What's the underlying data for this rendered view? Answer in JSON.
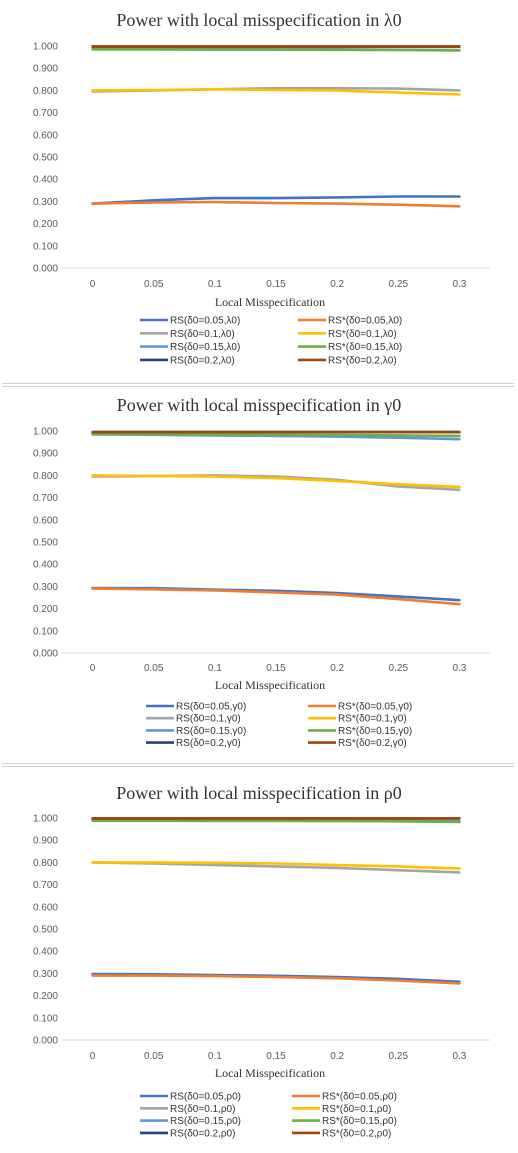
{
  "chart_data": [
    {
      "type": "line",
      "title": "Power with local misspecification in λ0",
      "xlabel": "Local Misspecification",
      "ylabel": "",
      "ylim": [
        0,
        1
      ],
      "x": [
        0,
        0.05,
        0.1,
        0.15,
        0.2,
        0.25,
        0.3
      ],
      "x_tick_labels": [
        "0",
        "0.05",
        "0.1",
        "0.15",
        "0.2",
        "0.25",
        "0.3"
      ],
      "y_tick_labels": [
        "0.000",
        "0.100",
        "0.200",
        "0.300",
        "0.400",
        "0.500",
        "0.600",
        "0.700",
        "0.800",
        "0.900",
        "1.000"
      ],
      "grid": false,
      "legend_position": "bottom",
      "series": [
        {
          "name": "RS(δ0=0.05,λ0)",
          "color": "#4472C4",
          "values": [
            0.29,
            0.305,
            0.315,
            0.315,
            0.318,
            0.322,
            0.322
          ]
        },
        {
          "name": "RS*(δ0=0.05,λ0)",
          "color": "#ED7D31",
          "values": [
            0.29,
            0.295,
            0.297,
            0.293,
            0.29,
            0.285,
            0.278
          ]
        },
        {
          "name": "RS(δ0=0.1,λ0)",
          "color": "#A5A5A5",
          "values": [
            0.795,
            0.8,
            0.805,
            0.81,
            0.81,
            0.808,
            0.8
          ]
        },
        {
          "name": "RS*(δ0=0.1,λ0)",
          "color": "#FFC000",
          "values": [
            0.8,
            0.802,
            0.805,
            0.802,
            0.8,
            0.79,
            0.782
          ]
        },
        {
          "name": "RS(δ0=0.15,λ0)",
          "color": "#5B9BD5",
          "values": [
            0.985,
            0.985,
            0.985,
            0.985,
            0.985,
            0.983,
            0.982
          ]
        },
        {
          "name": "RS*(δ0=0.15,λ0)",
          "color": "#70AD47",
          "values": [
            0.985,
            0.985,
            0.984,
            0.984,
            0.983,
            0.982,
            0.98
          ]
        },
        {
          "name": "RS(δ0=0.2,λ0)",
          "color": "#264478",
          "values": [
            0.998,
            0.998,
            0.998,
            0.998,
            0.998,
            0.998,
            0.998
          ]
        },
        {
          "name": "RS*(δ0=0.2,λ0)",
          "color": "#9E480E",
          "values": [
            0.997,
            0.997,
            0.997,
            0.997,
            0.997,
            0.997,
            0.997
          ]
        }
      ]
    },
    {
      "type": "line",
      "title": "Power with local misspecification in γ0",
      "xlabel": "Local Misspecification",
      "ylabel": "",
      "ylim": [
        0,
        1
      ],
      "x": [
        0,
        0.05,
        0.1,
        0.15,
        0.2,
        0.25,
        0.3
      ],
      "x_tick_labels": [
        "0",
        "0.05",
        "0.1",
        "0.15",
        "0.2",
        "0.25",
        "0.3"
      ],
      "y_tick_labels": [
        "0.000",
        "0.100",
        "0.200",
        "0.300",
        "0.400",
        "0.500",
        "0.600",
        "0.700",
        "0.800",
        "0.900",
        "1.000"
      ],
      "grid": false,
      "legend_position": "bottom",
      "series": [
        {
          "name": "RS(δ0=0.05,γ0)",
          "color": "#4472C4",
          "values": [
            0.293,
            0.292,
            0.285,
            0.28,
            0.27,
            0.255,
            0.238
          ]
        },
        {
          "name": "RS*(δ0=0.05,γ0)",
          "color": "#ED7D31",
          "values": [
            0.29,
            0.287,
            0.282,
            0.273,
            0.263,
            0.243,
            0.22
          ]
        },
        {
          "name": "RS(δ0=0.1,γ0)",
          "color": "#A5A5A5",
          "values": [
            0.795,
            0.797,
            0.8,
            0.795,
            0.78,
            0.75,
            0.735
          ]
        },
        {
          "name": "RS*(δ0=0.1,γ0)",
          "color": "#FFC000",
          "values": [
            0.8,
            0.797,
            0.795,
            0.788,
            0.775,
            0.76,
            0.748
          ]
        },
        {
          "name": "RS(δ0=0.15,γ0)",
          "color": "#5B9BD5",
          "values": [
            0.985,
            0.983,
            0.98,
            0.978,
            0.975,
            0.97,
            0.963
          ]
        },
        {
          "name": "RS*(δ0=0.15,γ0)",
          "color": "#70AD47",
          "values": [
            0.985,
            0.985,
            0.984,
            0.983,
            0.982,
            0.98,
            0.978
          ]
        },
        {
          "name": "RS(δ0=0.2,γ0)",
          "color": "#264478",
          "values": [
            0.995,
            0.995,
            0.995,
            0.995,
            0.995,
            0.995,
            0.995
          ]
        },
        {
          "name": "RS*(δ0=0.2,γ0)",
          "color": "#9E480E",
          "values": [
            0.995,
            0.995,
            0.995,
            0.995,
            0.995,
            0.995,
            0.995
          ]
        }
      ]
    },
    {
      "type": "line",
      "title": "Power with local misspecification in ρ0",
      "xlabel": "Local Misspecification",
      "ylabel": "",
      "ylim": [
        0,
        1
      ],
      "x": [
        0,
        0.05,
        0.1,
        0.15,
        0.2,
        0.25,
        0.3
      ],
      "x_tick_labels": [
        "0",
        "0.05",
        "0.1",
        "0.15",
        "0.2",
        "0.25",
        "0.3"
      ],
      "y_tick_labels": [
        "0.000",
        "0.100",
        "0.200",
        "0.300",
        "0.400",
        "0.500",
        "0.600",
        "0.700",
        "0.800",
        "0.900",
        "1.000"
      ],
      "grid": false,
      "legend_position": "bottom",
      "series": [
        {
          "name": "RS(δ0=0.05,ρ0)",
          "color": "#4472C4",
          "values": [
            0.297,
            0.296,
            0.293,
            0.289,
            0.284,
            0.275,
            0.262
          ]
        },
        {
          "name": "RS*(δ0=0.05,ρ0)",
          "color": "#ED7D31",
          "values": [
            0.29,
            0.29,
            0.288,
            0.284,
            0.278,
            0.268,
            0.255
          ]
        },
        {
          "name": "RS(δ0=0.1,ρ0)",
          "color": "#A5A5A5",
          "values": [
            0.8,
            0.795,
            0.788,
            0.782,
            0.775,
            0.765,
            0.755
          ]
        },
        {
          "name": "RS*(δ0=0.1,ρ0)",
          "color": "#FFC000",
          "values": [
            0.8,
            0.8,
            0.798,
            0.795,
            0.788,
            0.782,
            0.772
          ]
        },
        {
          "name": "RS(δ0=0.15,ρ0)",
          "color": "#5B9BD5",
          "values": [
            0.99,
            0.99,
            0.99,
            0.989,
            0.988,
            0.987,
            0.985
          ]
        },
        {
          "name": "RS*(δ0=0.15,ρ0)",
          "color": "#70AD47",
          "values": [
            0.988,
            0.988,
            0.987,
            0.987,
            0.986,
            0.985,
            0.982
          ]
        },
        {
          "name": "RS(δ0=0.2,ρ0)",
          "color": "#264478",
          "values": [
            0.998,
            0.998,
            0.998,
            0.998,
            0.998,
            0.998,
            0.998
          ]
        },
        {
          "name": "RS*(δ0=0.2,ρ0)",
          "color": "#9E480E",
          "values": [
            0.998,
            0.998,
            0.998,
            0.998,
            0.998,
            0.998,
            0.998
          ]
        }
      ]
    }
  ]
}
